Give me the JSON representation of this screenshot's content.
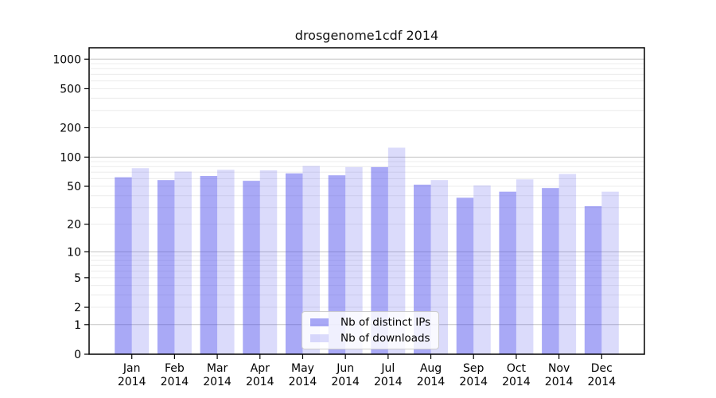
{
  "chart_data": {
    "type": "bar",
    "title": "drosgenome1cdf 2014",
    "year": "2014",
    "categories": [
      "Jan",
      "Feb",
      "Mar",
      "Apr",
      "May",
      "Jun",
      "Jul",
      "Aug",
      "Sep",
      "Oct",
      "Nov",
      "Dec"
    ],
    "series": [
      {
        "name": "Nb of distinct IPs",
        "color": "rgba(75,75,237,0.48)",
        "values": [
          62,
          58,
          64,
          57,
          68,
          65,
          79,
          52,
          38,
          44,
          48,
          31
        ]
      },
      {
        "name": "Nb of downloads",
        "color": "rgba(75,75,237,0.20)",
        "values": [
          77,
          71,
          74,
          73,
          81,
          79,
          125,
          58,
          51,
          59,
          67,
          44
        ]
      }
    ],
    "y_ticks": [
      0,
      1,
      2,
      5,
      10,
      20,
      50,
      100,
      200,
      500,
      1000
    ],
    "yscale": "log10(value+1)",
    "ylim": [
      0,
      1300
    ],
    "grid": "on",
    "legend_position": "lower center",
    "colors": {
      "major_gridline": "#c3c3c3",
      "minor_gridline": "#ececec",
      "axis": "#000000",
      "tick_label": "#000000"
    }
  }
}
